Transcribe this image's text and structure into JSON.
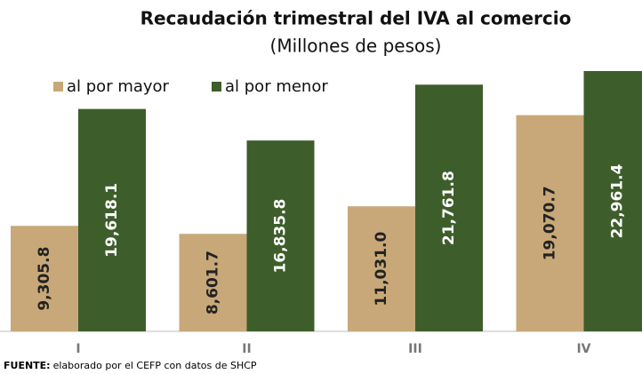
{
  "chart_data": {
    "type": "bar",
    "title": "Recaudación trimestral del IVA al comercio",
    "subtitle": "(Millones de pesos)",
    "categories": [
      "I",
      "II",
      "III",
      "IV"
    ],
    "series": [
      {
        "name": "al por mayor",
        "color": "#c8a878",
        "values": [
          9305.8,
          8601.7,
          11031.0,
          19070.7
        ],
        "value_labels": [
          "9,305.8",
          "8,601.7",
          "11,031.0",
          "19,070.7"
        ]
      },
      {
        "name": "al por menor",
        "color": "#3d5e2a",
        "values": [
          19618.1,
          16835.8,
          21761.8,
          22961.4
        ],
        "value_labels": [
          "19,618.1",
          "16,835.8",
          "21,761.8",
          "22,961.4"
        ]
      }
    ],
    "source_label": "FUENTE:",
    "source": "elaborado por el CEFP con datos de SHCP"
  }
}
